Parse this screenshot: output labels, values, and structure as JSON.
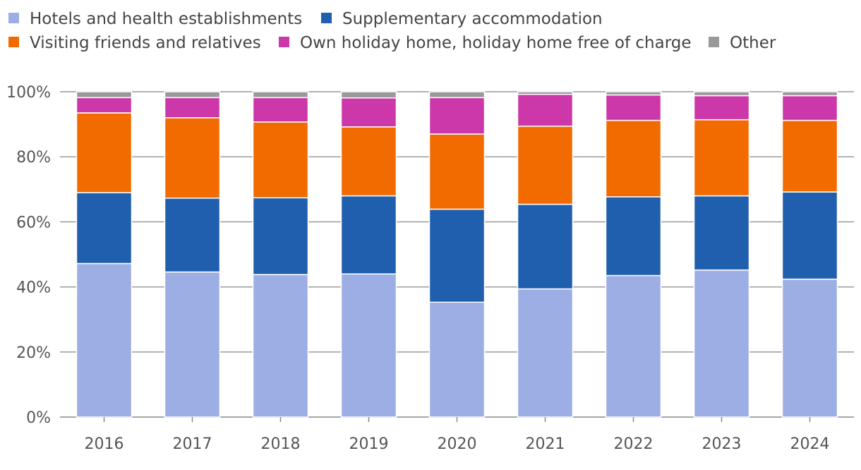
{
  "chart_data": {
    "type": "bar",
    "stacked": true,
    "categories": [
      "2016",
      "2017",
      "2018",
      "2019",
      "2020",
      "2021",
      "2022",
      "2023",
      "2024"
    ],
    "ylim": [
      0,
      100
    ],
    "yticks": [
      0,
      20,
      40,
      60,
      80,
      100
    ],
    "ytick_labels": [
      "0%",
      "20%",
      "40%",
      "60%",
      "80%",
      "100%"
    ],
    "legend_position": "top-left",
    "series": [
      {
        "name": "Hotels and health establishments",
        "color": "#9daee5",
        "values": [
          47.2,
          44.6,
          43.8,
          44.0,
          35.3,
          39.4,
          43.5,
          45.2,
          42.4
        ]
      },
      {
        "name": "Supplementary accommodation",
        "color": "#1f5fad",
        "values": [
          21.8,
          22.7,
          23.6,
          24.0,
          28.6,
          26.0,
          24.2,
          22.8,
          26.8
        ]
      },
      {
        "name": "Visiting friends and relatives",
        "color": "#f26b00",
        "values": [
          24.5,
          24.7,
          23.3,
          21.2,
          23.1,
          24.0,
          23.5,
          23.4,
          22.0
        ]
      },
      {
        "name": "Own holiday home, holiday home free of charge",
        "color": "#cc37a9",
        "values": [
          4.7,
          6.2,
          7.5,
          8.9,
          11.2,
          9.8,
          7.8,
          7.4,
          7.6
        ]
      },
      {
        "name": "Other",
        "color": "#999999",
        "values": [
          1.8,
          1.8,
          1.8,
          1.9,
          1.8,
          0.8,
          1.0,
          1.2,
          1.2
        ]
      }
    ]
  }
}
